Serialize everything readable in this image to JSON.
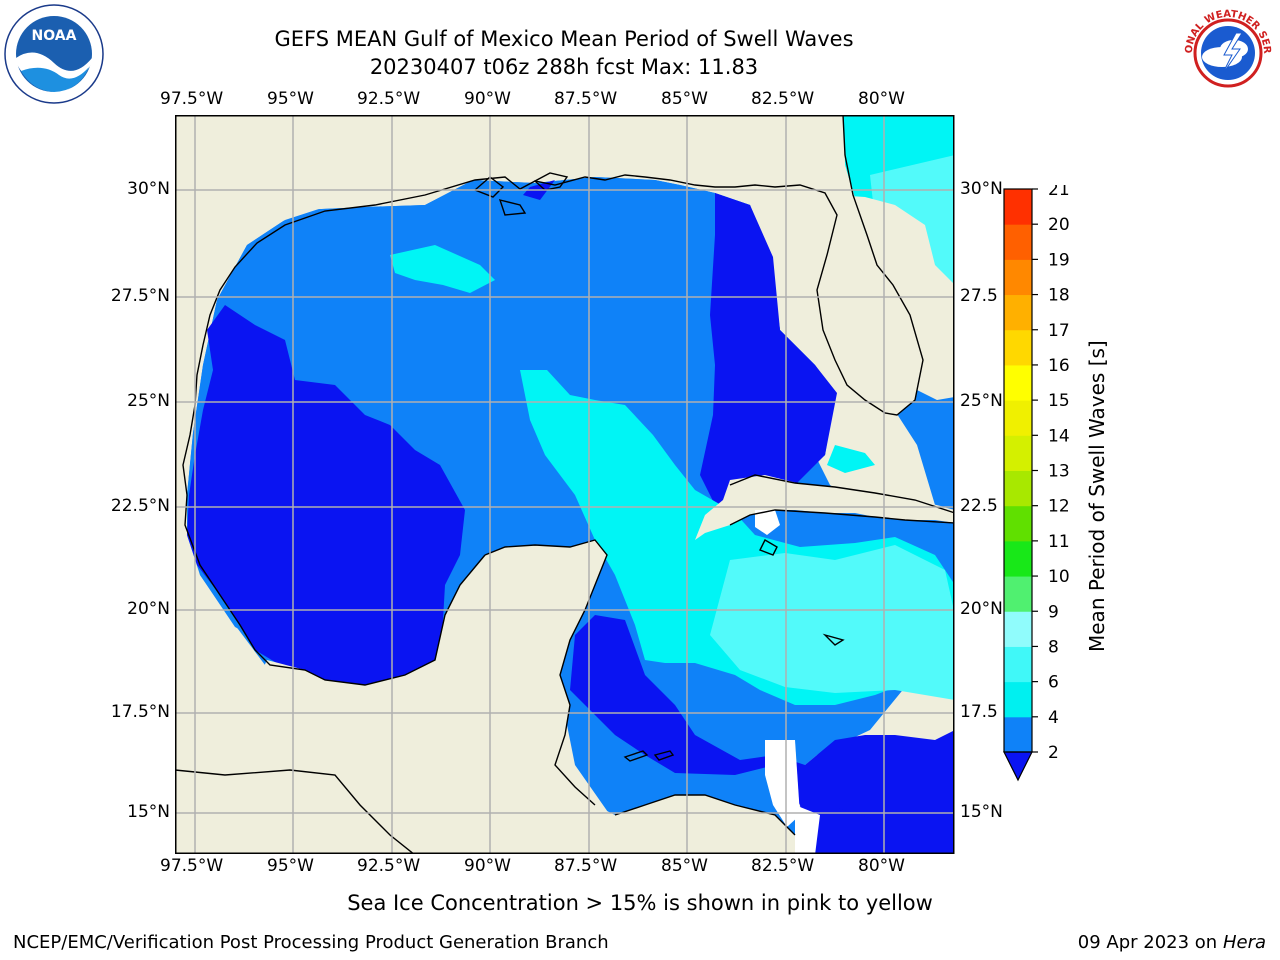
{
  "header": {
    "title_line1": "GEFS MEAN Gulf of Mexico Mean Period of Swell Waves",
    "title_line2": "20230407 t06z 288h fcst   Max: 11.83"
  },
  "logos": {
    "left": {
      "name": "noaa-logo",
      "text": "NOAA"
    },
    "right": {
      "name": "nws-logo",
      "text": "NATIONAL WEATHER SERVICE"
    }
  },
  "map": {
    "lon_labels": [
      "97.5°W",
      "95°W",
      "92.5°W",
      "90°W",
      "87.5°W",
      "85°W",
      "82.5°W",
      "80°W"
    ],
    "lat_labels_left": [
      "30°N",
      "27.5°N",
      "25°N",
      "22.5°N",
      "20°N",
      "17.5°N",
      "15°N"
    ],
    "lat_labels_right": [
      "30°N",
      "27.5",
      "25°N",
      "22.5",
      "20°N",
      "17.5",
      "15°N"
    ],
    "colors": {
      "land": "#efeedc",
      "ocean_dark": "#0a14f2",
      "ocean_mid": "#0f82f8",
      "ocean_cyan": "#00f5f5",
      "ocean_lightcyan": "#52fafa",
      "green": "#18f018",
      "light_green": "#60f060"
    }
  },
  "colorbar": {
    "label": "Mean Period of Swell Waves [s]",
    "ticks": [
      "2",
      "4",
      "6",
      "8",
      "9",
      "10",
      "11",
      "12",
      "13",
      "14",
      "15",
      "16",
      "17",
      "18",
      "19",
      "20",
      "21"
    ],
    "colors": [
      "#0f82f8",
      "#00f0f0",
      "#40f8f8",
      "#90fcfc",
      "#50f070",
      "#18e818",
      "#60e000",
      "#a8e800",
      "#d4f000",
      "#f0f000",
      "#ffff00",
      "#ffd800",
      "#ffb000",
      "#ff8800",
      "#ff6000",
      "#ff3000",
      "#ff0000"
    ],
    "extend_color": "#0a14f2"
  },
  "subtitle": "Sea Ice Concentration > 15% is shown in pink to yellow",
  "footer": {
    "left": "NCEP/EMC/Verification Post Processing Product Generation Branch",
    "right_date": "09 Apr 2023 on ",
    "right_host": "Hera"
  }
}
